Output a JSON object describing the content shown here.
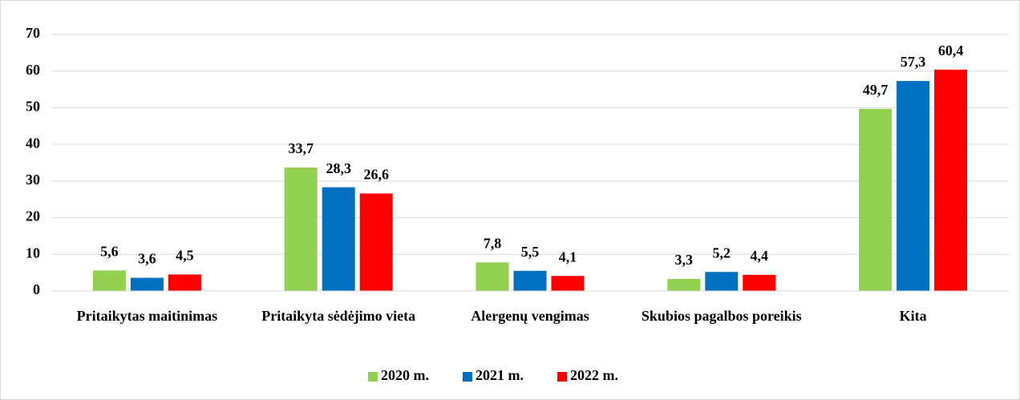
{
  "chart_data": {
    "type": "bar",
    "categories": [
      "Pritaikytas maitinimas",
      "Pritaikyta sėdėjimo vieta",
      "Alergenų vengimas",
      "Skubios pagalbos poreikis",
      "Kita"
    ],
    "series": [
      {
        "name": "2020 m.",
        "color": "#92d050",
        "values": [
          5.6,
          33.7,
          7.8,
          3.3,
          49.7
        ],
        "value_labels": [
          "5,6",
          "33,7",
          "7,8",
          "3,3",
          "49,7"
        ]
      },
      {
        "name": "2021 m.",
        "color": "#0070c0",
        "values": [
          3.6,
          28.3,
          5.5,
          5.2,
          57.3
        ],
        "value_labels": [
          "3,6",
          "28,3",
          "5,5",
          "5,2",
          "57,3"
        ]
      },
      {
        "name": "2022 m.",
        "color": "#ff0000",
        "values": [
          4.5,
          26.6,
          4.1,
          4.4,
          60.4
        ],
        "value_labels": [
          "4,5",
          "26,6",
          "4,1",
          "4,4",
          "60,4"
        ]
      }
    ],
    "ylim": [
      0,
      70
    ],
    "yticks": [
      0,
      10,
      20,
      30,
      40,
      50,
      60,
      70
    ],
    "grid": true,
    "legend": "bottom"
  }
}
